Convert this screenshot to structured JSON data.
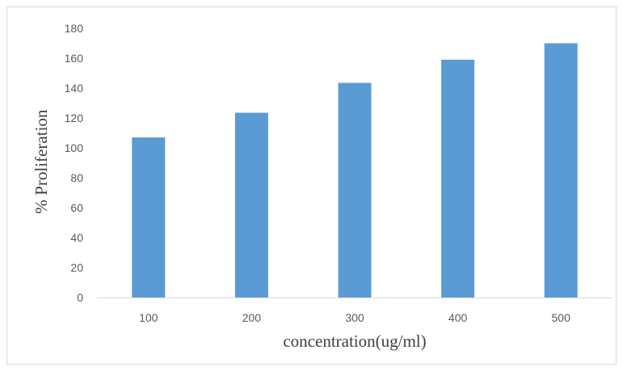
{
  "chart_data": {
    "type": "bar",
    "categories": [
      "100",
      "200",
      "300",
      "400",
      "500"
    ],
    "values": [
      107,
      123.5,
      143.5,
      159,
      170
    ],
    "xlabel": "concentration(ug/ml)",
    "ylabel": "% Proliferation",
    "ylim": [
      0,
      180
    ],
    "yticks": [
      0,
      20,
      40,
      60,
      80,
      100,
      120,
      140,
      160,
      180
    ],
    "grid": false,
    "legend": "none",
    "bar_color": "#5b9bd5",
    "axis_color": "#d9d9d9"
  }
}
